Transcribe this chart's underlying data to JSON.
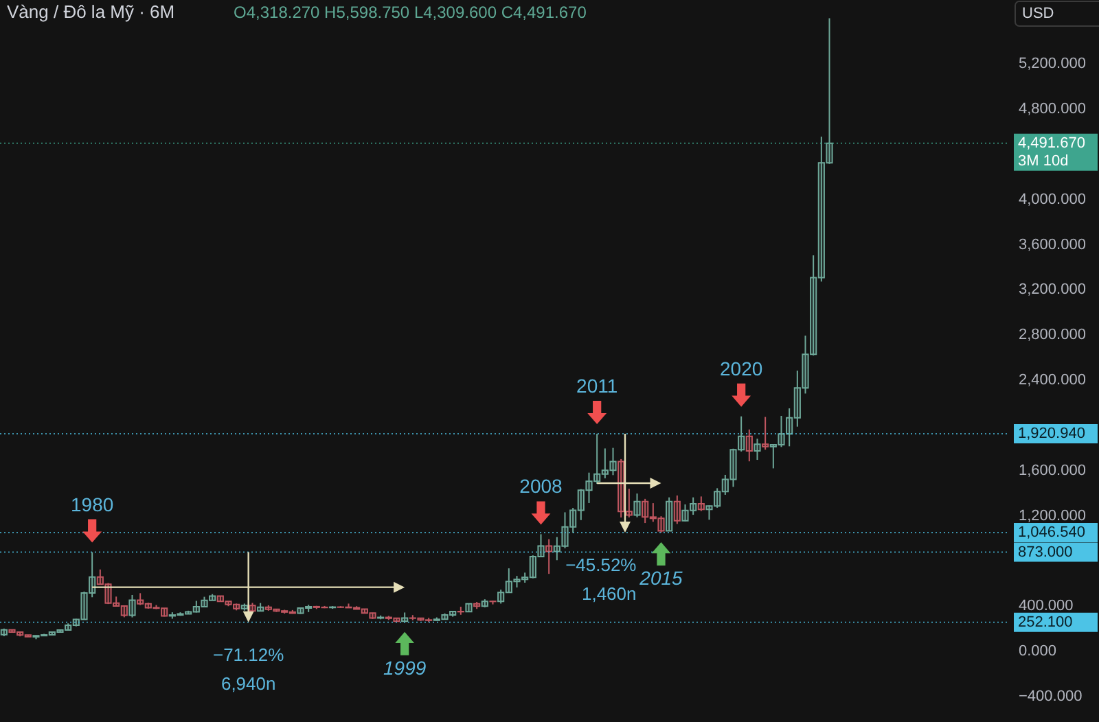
{
  "chart_data": {
    "type": "candlestick",
    "title": "Vàng / Đô la Mỹ · 6M",
    "subtitle": "O4,318.270 H5,598.750 L4,309.600 C4,491.670",
    "ylabel": "USD",
    "categories": [
      null,
      null,
      null,
      null,
      null,
      null,
      null,
      null,
      null,
      null,
      null,
      null,
      null,
      null,
      null,
      null,
      null,
      null,
      null,
      null,
      null,
      null,
      null,
      null,
      null,
      null,
      null,
      null,
      null,
      null,
      null,
      null,
      null,
      null,
      null,
      null,
      null,
      null,
      null,
      null,
      null,
      null,
      null,
      null,
      null,
      null,
      null,
      null,
      null,
      null,
      null,
      null,
      null,
      null,
      null,
      null,
      null,
      null,
      null,
      null,
      null,
      null,
      null,
      null,
      null,
      null,
      null,
      null,
      null,
      null,
      null,
      null,
      null,
      null,
      null,
      null,
      null,
      null,
      null,
      null,
      null,
      null,
      null,
      null,
      null,
      null,
      null,
      null,
      null,
      null,
      null,
      null,
      null,
      null,
      null,
      null,
      null,
      null,
      null,
      null,
      null,
      null,
      null,
      null,
      null,
      null,
      null,
      null,
      null,
      null,
      null,
      null,
      null,
      null,
      null,
      null,
      null,
      null,
      null,
      null,
      null,
      null,
      null,
      null,
      null,
      null
    ],
    "ohlc": [
      [
        143,
        197,
        129,
        186
      ],
      [
        186,
        187,
        161,
        166
      ],
      [
        166,
        168,
        128,
        140
      ],
      [
        140,
        141,
        123,
        124
      ],
      [
        124,
        137,
        103,
        134
      ],
      [
        134,
        150,
        130,
        141
      ],
      [
        141,
        168,
        140,
        165
      ],
      [
        165,
        190,
        164,
        184
      ],
      [
        184,
        243,
        183,
        226
      ],
      [
        226,
        283,
        216,
        278
      ],
      [
        278,
        524,
        277,
        512
      ],
      [
        512,
        873.0,
        474,
        653
      ],
      [
        653,
        720,
        586,
        590
      ],
      [
        590,
        600,
        414,
        422
      ],
      [
        422,
        480,
        391,
        397
      ],
      [
        397,
        400,
        297,
        314
      ],
      [
        314,
        494,
        296,
        448
      ],
      [
        448,
        510,
        405,
        416
      ],
      [
        416,
        425,
        374,
        382
      ],
      [
        382,
        405,
        369,
        377
      ],
      [
        377,
        378,
        303,
        309
      ],
      [
        309,
        341,
        284,
        317
      ],
      [
        317,
        341,
        310,
        327
      ],
      [
        327,
        355,
        326,
        345
      ],
      [
        345,
        442,
        339,
        391
      ],
      [
        391,
        478,
        390,
        447
      ],
      [
        447,
        502,
        446,
        484
      ],
      [
        484,
        485,
        436,
        437
      ],
      [
        437,
        439,
        395,
        410
      ],
      [
        410,
        418,
        358,
        373
      ],
      [
        373,
        418,
        356,
        401
      ],
      [
        401,
        424,
        346,
        352
      ],
      [
        352,
        423,
        349,
        386
      ],
      [
        386,
        403,
        355,
        367
      ],
      [
        367,
        370,
        344,
        353
      ],
      [
        353,
        363,
        330,
        343
      ],
      [
        343,
        361,
        329,
        333
      ],
      [
        333,
        380,
        326,
        378
      ],
      [
        378,
        407,
        343,
        391
      ],
      [
        391,
        398,
        370,
        385
      ],
      [
        385,
        397,
        377,
        383
      ],
      [
        383,
        396,
        372,
        387
      ],
      [
        387,
        395,
        380,
        386
      ],
      [
        386,
        418,
        380,
        382
      ],
      [
        382,
        395,
        367,
        369
      ],
      [
        369,
        370,
        330,
        334
      ],
      [
        334,
        337,
        282,
        290
      ],
      [
        290,
        313,
        279,
        296
      ],
      [
        296,
        309,
        273,
        288
      ],
      [
        288,
        293,
        256,
        262
      ],
      [
        262,
        339,
        252.1,
        290
      ],
      [
        290,
        316,
        271,
        289
      ],
      [
        289,
        292,
        264,
        273
      ],
      [
        273,
        292,
        255,
        270
      ],
      [
        270,
        296,
        266,
        279
      ],
      [
        279,
        331,
        277,
        318
      ],
      [
        318,
        350,
        302,
        348
      ],
      [
        348,
        390,
        319,
        346
      ],
      [
        346,
        417,
        342,
        417
      ],
      [
        417,
        433,
        371,
        395
      ],
      [
        395,
        456,
        385,
        438
      ],
      [
        438,
        443,
        411,
        437
      ],
      [
        437,
        541,
        418,
        517
      ],
      [
        517,
        730,
        516,
        614
      ],
      [
        614,
        663,
        561,
        632
      ],
      [
        632,
        692,
        603,
        650
      ],
      [
        650,
        845,
        642,
        834
      ],
      [
        834,
        1032,
        834,
        928
      ],
      [
        928,
        988,
        681,
        880
      ],
      [
        880,
        1007,
        802,
        927
      ],
      [
        927,
        1226,
        908,
        1097
      ],
      [
        1097,
        1265,
        1044,
        1244
      ],
      [
        1244,
        1431,
        1157,
        1421
      ],
      [
        1421,
        1577,
        1308,
        1500
      ],
      [
        1500,
        1920.94,
        1478,
        1565
      ],
      [
        1565,
        1791,
        1527,
        1598
      ],
      [
        1598,
        1796,
        1555,
        1675
      ],
      [
        1675,
        1697,
        1180,
        1234
      ],
      [
        1234,
        1434,
        1181,
        1202
      ],
      [
        1202,
        1392,
        1182,
        1322
      ],
      [
        1322,
        1345,
        1131,
        1184
      ],
      [
        1184,
        1307,
        1142,
        1172
      ],
      [
        1172,
        1191,
        1046.54,
        1061
      ],
      [
        1061,
        1358,
        1061,
        1321
      ],
      [
        1321,
        1375,
        1123,
        1152
      ],
      [
        1152,
        1296,
        1147,
        1242
      ],
      [
        1242,
        1358,
        1204,
        1302
      ],
      [
        1302,
        1366,
        1237,
        1252
      ],
      [
        1252,
        1287,
        1160,
        1282
      ],
      [
        1282,
        1439,
        1266,
        1409
      ],
      [
        1409,
        1557,
        1381,
        1517
      ],
      [
        1517,
        1789,
        1451,
        1780
      ],
      [
        1780,
        2075,
        1764,
        1898
      ],
      [
        1898,
        1959,
        1677,
        1770
      ],
      [
        1770,
        1877,
        1690,
        1829
      ],
      [
        1829,
        2070,
        1780,
        1807
      ],
      [
        1807,
        1824,
        1615,
        1824
      ],
      [
        1824,
        2079,
        1804,
        1919
      ],
      [
        1919,
        2146,
        1810,
        2063
      ],
      [
        2063,
        2480,
        1984,
        2327
      ],
      [
        2327,
        2790,
        2277,
        2624
      ],
      [
        2624,
        3500,
        2614,
        3303
      ],
      [
        3303,
        4550,
        3268,
        4318.27
      ],
      [
        4318.27,
        5598.75,
        4309.6,
        4491.67
      ],
      null,
      null,
      null,
      null,
      null,
      null,
      null,
      null,
      null,
      null,
      null,
      null,
      null,
      null,
      null,
      null,
      null,
      null,
      null,
      null,
      null,
      null
    ],
    "colors": [
      "#6ea899",
      "#c05660",
      "#c05660",
      "#c05660",
      "#6ea899",
      "#6ea899",
      "#6ea899",
      "#6ea899",
      "#6ea899",
      "#6ea899",
      "#6ea899",
      "#6ea899",
      "#c05660",
      "#c05660",
      "#c05660",
      "#c05660",
      "#6ea899",
      "#c05660",
      "#c05660",
      "#c05660",
      "#c05660",
      "#6ea899",
      "#6ea899",
      "#6ea899",
      "#6ea899",
      "#6ea899",
      "#6ea899",
      "#c05660",
      "#c05660",
      "#c05660",
      "#6ea899",
      "#c05660",
      "#6ea899",
      "#c05660",
      "#c05660",
      "#c05660",
      "#c05660",
      "#6ea899",
      "#6ea899",
      "#c05660",
      "#c05660",
      "#6ea899",
      "#c05660",
      "#c05660",
      "#c05660",
      "#c05660",
      "#c05660",
      "#6ea899",
      "#c05660",
      "#c05660",
      "#6ea899",
      "#c05660",
      "#c05660",
      "#c05660",
      "#6ea899",
      "#6ea899",
      "#6ea899",
      "#c05660",
      "#6ea899",
      "#c05660",
      "#6ea899",
      "#c05660",
      "#6ea899",
      "#6ea899",
      "#6ea899",
      "#6ea899",
      "#6ea899",
      "#6ea899",
      "#c05660",
      "#6ea899",
      "#6ea899",
      "#6ea899",
      "#6ea899",
      "#6ea899",
      "#6ea899",
      "#6ea899",
      "#6ea899",
      "#c05660",
      "#c05660",
      "#6ea899",
      "#c05660",
      "#c05660",
      "#c05660",
      "#6ea899",
      "#c05660",
      "#6ea899",
      "#6ea899",
      "#c05660",
      "#6ea899",
      "#6ea899",
      "#6ea899",
      "#6ea899",
      "#6ea899",
      "#c05660",
      "#6ea899",
      "#c05660",
      "#6ea899",
      "#6ea899",
      "#6ea899",
      "#6ea899",
      "#6ea899",
      "#6ea899",
      "#6ea899",
      "#6ea899",
      null,
      null,
      null,
      null,
      null,
      null,
      null,
      null,
      null,
      null,
      null,
      null,
      null,
      null,
      null,
      null,
      null,
      null,
      null,
      null,
      null,
      null
    ],
    "ylim": [
      -630,
      5760
    ],
    "yticks": [
      {
        "value": -400,
        "label": "−400.000"
      },
      {
        "value": 0,
        "label": "0.000"
      },
      {
        "value": 400,
        "label": "400.000"
      },
      {
        "value": 1200,
        "label": "1,200.000"
      },
      {
        "value": 1600,
        "label": "1,600.000"
      },
      {
        "value": 2400,
        "label": "2,400.000"
      },
      {
        "value": 2800,
        "label": "2,800.000"
      },
      {
        "value": 3200,
        "label": "3,200.000"
      },
      {
        "value": 3600,
        "label": "3,600.000"
      },
      {
        "value": 4000,
        "label": "4,000.000"
      },
      {
        "value": 4800,
        "label": "4,800.000"
      },
      {
        "value": 5200,
        "label": "5,200.000"
      }
    ],
    "tick_labels": "y",
    "ref_lines": [
      {
        "axis": "y",
        "value": 4491.67,
        "label": "4,491.670\n3M 10d",
        "color": "#3ea58e",
        "line_style": "dotted"
      },
      {
        "axis": "y",
        "value": 1920.94,
        "label": "1,920.940",
        "color": "#4cc3e6",
        "line_style": "dotted"
      },
      {
        "axis": "y",
        "value": 1046.54,
        "label": "1,046.540",
        "color": "#4cc3e6",
        "line_style": "dotted"
      },
      {
        "axis": "y",
        "value": 873.0,
        "label": "873.000",
        "color": "#4cc3e6",
        "line_style": "dotted"
      },
      {
        "axis": "y",
        "value": 252.1,
        "label": "252.100",
        "color": "#4cc3e6",
        "line_style": "dotted"
      }
    ],
    "annotations": [
      {
        "text": "1980",
        "y": 873.0
      },
      "−71.12%",
      "6,940n",
      {
        "text": "1999",
        "y": 252.1
      },
      {
        "text": "2008",
        "y": 1032
      },
      {
        "text": "2011",
        "y": 1920.94
      },
      "−45.52%",
      "1,460n",
      {
        "text": "2015",
        "y": 1046.54
      },
      {
        "text": "2020",
        "y": 2075
      }
    ]
  }
}
